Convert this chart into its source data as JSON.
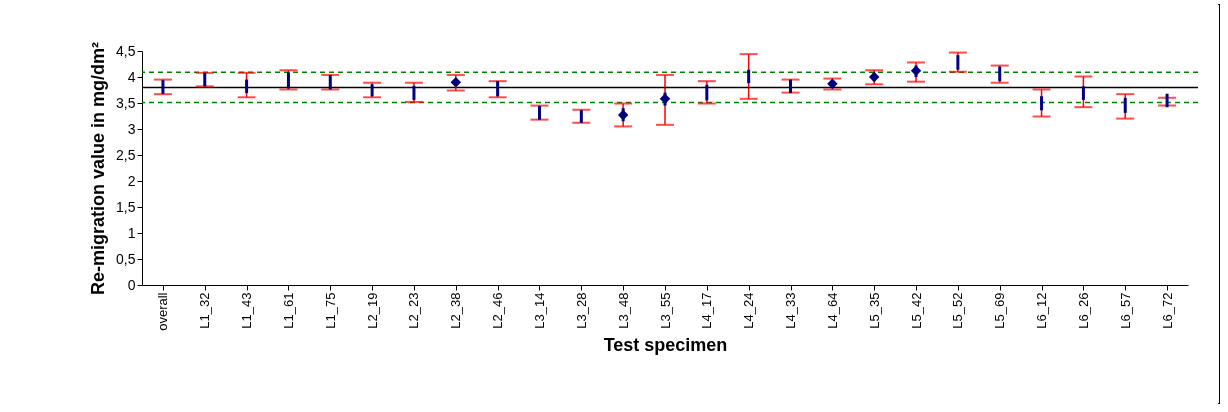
{
  "chart_data": {
    "type": "scatter",
    "xlabel": "Test specimen",
    "ylabel": "Re-migration value in\nmg/dm²",
    "categories": [
      "overall",
      "L1_32",
      "L1_43",
      "L1_61",
      "L1_75",
      "L2_19",
      "L2_23",
      "L2_38",
      "L2_46",
      "L3_14",
      "L3_28",
      "L3_48",
      "L3_55",
      "L4_17",
      "L4_24",
      "L4_33",
      "L4_64",
      "L5_35",
      "L5_42",
      "L5_52",
      "L5_69",
      "L6_12",
      "L6_26",
      "L6_57",
      "L6_72"
    ],
    "series": [
      {
        "type": "bar",
        "color": "#000080",
        "base": [
          3.68,
          3.82,
          3.69,
          3.78,
          3.76,
          3.63,
          3.56,
          null,
          3.63,
          3.18,
          3.12,
          3.15,
          3.45,
          3.55,
          3.88,
          3.69,
          null,
          3.92,
          4.0,
          4.14,
          3.92,
          3.36,
          3.56,
          3.31,
          3.42
        ],
        "values": [
          0.26,
          0.26,
          0.26,
          0.31,
          0.28,
          0.23,
          0.27,
          null,
          0.29,
          0.26,
          0.24,
          0.25,
          0.25,
          0.3,
          0.26,
          0.26,
          null,
          0.16,
          0.22,
          0.28,
          0.28,
          0.27,
          0.26,
          0.29,
          0.26
        ],
        "errors": [
          [
            3.67,
            3.95
          ],
          [
            3.82,
            4.08
          ],
          [
            3.61,
            4.08
          ],
          [
            3.76,
            4.13
          ],
          [
            3.76,
            4.04
          ],
          [
            3.61,
            3.89
          ],
          [
            3.52,
            3.89
          ],
          null,
          [
            3.61,
            3.92
          ],
          [
            3.18,
            3.45
          ],
          [
            3.12,
            3.37
          ],
          [
            3.05,
            3.49
          ],
          [
            3.08,
            4.04
          ],
          [
            3.49,
            3.92
          ],
          [
            3.58,
            4.44
          ],
          [
            3.7,
            3.95
          ],
          null,
          [
            3.86,
            4.13
          ],
          [
            3.91,
            4.28
          ],
          [
            4.1,
            4.47
          ],
          [
            3.89,
            4.22
          ],
          [
            3.24,
            3.76
          ],
          [
            3.42,
            4.01
          ],
          [
            3.2,
            3.67
          ],
          [
            3.45,
            3.6
          ]
        ]
      },
      {
        "color": "#000080",
        "marker": "diamond",
        "values": [
          null,
          null,
          null,
          null,
          null,
          null,
          null,
          3.9,
          null,
          null,
          null,
          3.27,
          3.58,
          null,
          null,
          null,
          3.87,
          4.0,
          4.12,
          null,
          null,
          null,
          null,
          null,
          null
        ],
        "errors": [
          null,
          null,
          null,
          null,
          null,
          null,
          null,
          [
            3.74,
            4.04
          ],
          null,
          null,
          null,
          null,
          null,
          null,
          null,
          null,
          [
            3.76,
            3.97
          ],
          null,
          null,
          null,
          null,
          null,
          null,
          null,
          null
        ]
      }
    ],
    "ylim": [
      0,
      4.5
    ],
    "yticks": [
      0,
      {
        "value": 0.5,
        "label": "0,5"
      },
      1,
      {
        "value": 1.5,
        "label": "1,5"
      },
      2,
      {
        "value": 2.5,
        "label": "2,5"
      },
      3,
      {
        "value": 3.5,
        "label": "3,5"
      },
      4,
      {
        "value": 4.5,
        "label": "4,5"
      }
    ],
    "ref_lines": [
      {
        "axis": "y",
        "value": 3.8,
        "color": "#000000",
        "line_style": "solid"
      },
      {
        "axis": "y",
        "value": 4.09,
        "color": "#008000",
        "line_style": "dashed"
      },
      {
        "axis": "y",
        "value": 3.51,
        "color": "#008000",
        "line_style": "dashed"
      }
    ]
  }
}
